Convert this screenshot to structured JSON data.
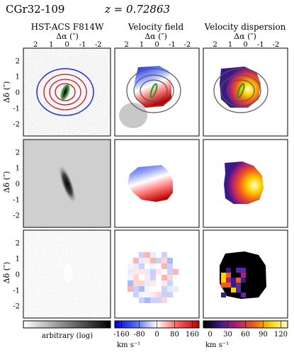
{
  "header": {
    "object": "CGr32-109",
    "redshift": "z = 0.72863"
  },
  "columns": [
    {
      "title": "HST-ACS F814W"
    },
    {
      "title": "Velocity field"
    },
    {
      "title": "Velocity dispersion"
    }
  ],
  "axes": {
    "x_label": "Δα (″)",
    "y_label": "Δδ (″)",
    "x_ticks": [
      "2",
      "1",
      "0",
      "-1",
      "-2"
    ],
    "y_ticks": [
      "2",
      "1",
      "0",
      "-1",
      "-2"
    ]
  },
  "colorbars": [
    {
      "label": "arbitrary (log)",
      "ticks": [],
      "unit": "",
      "colors": [
        "#ffffff",
        "#000000"
      ]
    },
    {
      "label": "",
      "ticks": [
        "-160",
        "-80",
        "0",
        "80",
        "160"
      ],
      "unit": "km s⁻¹",
      "colors": [
        "#0000cc",
        "#4f6bff",
        "#ffffff",
        "#ff5a5a",
        "#c00000"
      ]
    },
    {
      "label": "",
      "ticks": [
        "0",
        "30",
        "60",
        "90",
        "120"
      ],
      "unit": "km s⁻¹",
      "colors": [
        "#000000",
        "#3a1a88",
        "#b51f6f",
        "#f05a1a",
        "#ffd400",
        "#ffffc8"
      ]
    }
  ],
  "palette": {
    "contour_blue": "#1a2bd6",
    "contour_red": "#c0171f",
    "contour_green": "#1b9b1b",
    "contour_gray": "#555555"
  }
}
